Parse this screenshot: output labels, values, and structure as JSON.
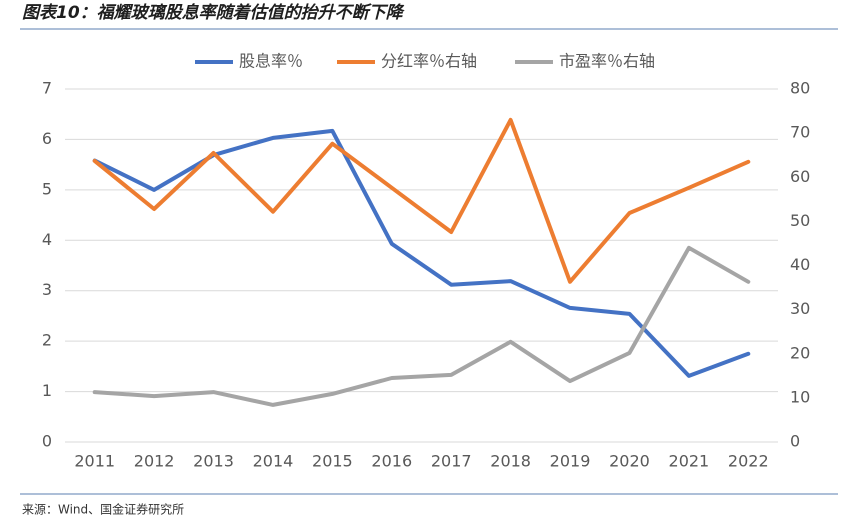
{
  "chart_data": {
    "type": "line",
    "title": "图表10：福耀玻璃股息率随着估值的抬升不断下降",
    "source": "来源：Wind、国金证券研究所",
    "categories": [
      "2011",
      "2012",
      "2013",
      "2014",
      "2015",
      "2016",
      "2017",
      "2018",
      "2019",
      "2020",
      "2021",
      "2022"
    ],
    "series": [
      {
        "name": "股息率％",
        "color": "#4472c4",
        "values": [
          5.58,
          5.0,
          5.69,
          6.03,
          6.17,
          3.93,
          3.12,
          3.19,
          2.66,
          2.54,
          1.31,
          1.75
        ]
      },
      {
        "name": "分红率％右轴",
        "color": "#ed7d31",
        "axis": "y2",
        "values": [
          63.7,
          52.8,
          65.5,
          52.2,
          67.6,
          57.6,
          47.6,
          73.0,
          36.3,
          51.9,
          57.6,
          63.5
        ]
      },
      {
        "name": "市盈率％右轴",
        "color": "#a5a5a5",
        "axis": "y2",
        "values": [
          11.3,
          10.4,
          11.3,
          8.4,
          10.9,
          14.5,
          15.2,
          22.7,
          13.8,
          20.2,
          44.0,
          36.3
        ]
      }
    ],
    "ylim": [
      0,
      7
    ],
    "yticks": [
      0,
      1,
      2,
      3,
      4,
      5,
      6,
      7
    ],
    "y2lim": [
      0,
      80
    ],
    "y2ticks": [
      0,
      10,
      20,
      30,
      40,
      50,
      60,
      70,
      80
    ],
    "grid": true,
    "legend": "top"
  }
}
